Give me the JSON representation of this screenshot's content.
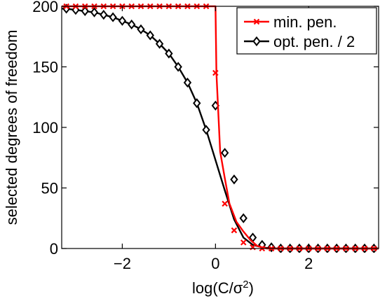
{
  "chart_data": {
    "type": "line",
    "title": "",
    "xlabel_prefix": "log(C/σ",
    "xlabel_sup": "2",
    "xlabel_suffix": ")",
    "ylabel": "selected degrees of freedom",
    "xlim": [
      -3.3,
      3.5
    ],
    "ylim": [
      0,
      200
    ],
    "xticks": [
      -2,
      0,
      2
    ],
    "xtick_labels": [
      "−2",
      "0",
      "2"
    ],
    "yticks": [
      0,
      50,
      100,
      150,
      200
    ],
    "ytick_labels": [
      "0",
      "50",
      "100",
      "150",
      "200"
    ],
    "grid": false,
    "legend_position": "top-right",
    "series": [
      {
        "name": "min. pen.",
        "color": "#ff0000",
        "marker": "x",
        "x": [
          -3.3,
          -3.1,
          -2.9,
          -2.7,
          -2.5,
          -2.3,
          -2.1,
          -1.9,
          -1.7,
          -1.5,
          -1.3,
          -1.1,
          -0.9,
          -0.7,
          -0.5,
          -0.3,
          -0.1,
          0.0,
          0.02,
          0.1,
          0.2,
          0.3,
          0.45,
          0.6,
          0.75,
          0.9,
          1.1,
          1.3,
          1.5,
          1.7,
          1.9,
          2.1,
          2.3,
          2.5,
          2.7,
          2.9,
          3.1,
          3.3,
          3.5
        ],
        "y": [
          200,
          200,
          200,
          200,
          200,
          200,
          200,
          200,
          200,
          200,
          200,
          200,
          200,
          200,
          200,
          200,
          200,
          200,
          145,
          80,
          58,
          37,
          22,
          14,
          7,
          2,
          0,
          0,
          0,
          0,
          0,
          0,
          0,
          0,
          0,
          0,
          0,
          0,
          0
        ],
        "marker_x": [
          -3.2,
          -3.0,
          -2.8,
          -2.6,
          -2.4,
          -2.2,
          -2.0,
          -1.8,
          -1.6,
          -1.4,
          -1.2,
          -1.0,
          -0.8,
          -0.6,
          -0.4,
          -0.2,
          0.0,
          0.2,
          0.4,
          0.6,
          0.8,
          1.0,
          1.2,
          1.4,
          1.6,
          1.8,
          2.0,
          2.2,
          2.4,
          2.6,
          2.8,
          3.0,
          3.2,
          3.4
        ],
        "marker_y": [
          200,
          200,
          200,
          200,
          200,
          200,
          200,
          200,
          200,
          200,
          200,
          200,
          200,
          200,
          200,
          200,
          145,
          37,
          15,
          5,
          1,
          0,
          0,
          0,
          0,
          0,
          0,
          0,
          0,
          0,
          0,
          0,
          0,
          0
        ]
      },
      {
        "name": "opt. pen. / 2",
        "color": "#000000",
        "marker": "diamond",
        "x": [
          -3.3,
          -3.2,
          -3.0,
          -2.8,
          -2.6,
          -2.4,
          -2.2,
          -2.0,
          -1.8,
          -1.6,
          -1.4,
          -1.2,
          -1.0,
          -0.8,
          -0.6,
          -0.4,
          -0.2,
          0.0,
          0.2,
          0.4,
          0.6,
          0.8,
          1.0,
          1.2,
          1.4,
          1.6,
          1.8,
          2.0,
          2.2,
          2.4,
          2.6,
          2.8,
          3.0,
          3.2,
          3.4,
          3.5
        ],
        "y": [
          198,
          198,
          197,
          196,
          195,
          193,
          191,
          188,
          185,
          181,
          176,
          169,
          161,
          150,
          137,
          120,
          98,
          73,
          48,
          24,
          9,
          3,
          1,
          0,
          0,
          0,
          0,
          0,
          0,
          0,
          0,
          0,
          0,
          0,
          0,
          0
        ],
        "marker_x": [
          -3.2,
          -3.0,
          -2.8,
          -2.6,
          -2.4,
          -2.2,
          -2.0,
          -1.8,
          -1.6,
          -1.4,
          -1.2,
          -1.0,
          -0.8,
          -0.6,
          -0.4,
          -0.2,
          0.0,
          0.2,
          0.4,
          0.6,
          0.8,
          1.0,
          1.2,
          1.4,
          1.6,
          1.8,
          2.0,
          2.2,
          2.4,
          2.6,
          2.8,
          3.0,
          3.2,
          3.4
        ],
        "marker_y": [
          198,
          197,
          196,
          195,
          193,
          191,
          188,
          185,
          181,
          176,
          169,
          161,
          150,
          137,
          120,
          98,
          118,
          79,
          57,
          25,
          9,
          3,
          1,
          0,
          0,
          0,
          0,
          0,
          0,
          0,
          0,
          0,
          0,
          0
        ]
      }
    ]
  }
}
